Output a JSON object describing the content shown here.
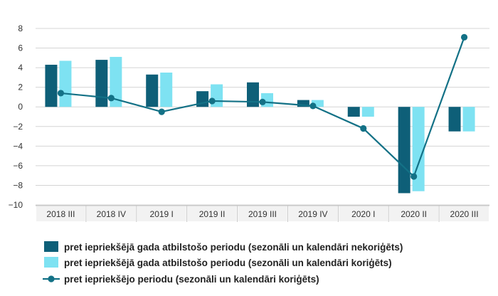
{
  "chart_data": {
    "type": "bar",
    "title": "",
    "xlabel": "",
    "ylabel": "",
    "categories": [
      "2018 III",
      "2018 IV",
      "2019 I",
      "2019 II",
      "2019 III",
      "2019 IV",
      "2020 I",
      "2020 II",
      "2020 III"
    ],
    "ylim": [
      -10,
      8
    ],
    "yticks": [
      8,
      6,
      4,
      2,
      0,
      -2,
      -4,
      -6,
      -8,
      -10
    ],
    "ytick_labels": [
      "8",
      "6",
      "4",
      "2",
      "0",
      "−2",
      "−4",
      "−6",
      "−8",
      "−10"
    ],
    "grid": true,
    "legend_position": "bottom",
    "series": [
      {
        "name": "pret iepriekšējā gada atbilstošo periodu (sezonāli un kalendāri nekoriģēts)",
        "type": "bar",
        "color": "#0e5f78",
        "values": [
          4.3,
          4.8,
          3.3,
          1.6,
          2.5,
          0.7,
          -1.0,
          -8.8,
          -2.5
        ]
      },
      {
        "name": "pret iepriekšējā gada atbilstošo periodu (sezonāli un kalendāri koriģēts)",
        "type": "bar",
        "color": "#7ee2f2",
        "values": [
          4.7,
          5.1,
          3.5,
          2.3,
          1.4,
          0.7,
          -1.0,
          -8.6,
          -2.5
        ]
      },
      {
        "name": "pret iepriekšējo periodu (sezonāli un kalendāri koriģēts)",
        "type": "line",
        "color": "#137186",
        "values": [
          1.4,
          0.9,
          -0.5,
          0.6,
          0.5,
          0.1,
          -2.2,
          -7.1,
          7.1
        ]
      }
    ]
  }
}
